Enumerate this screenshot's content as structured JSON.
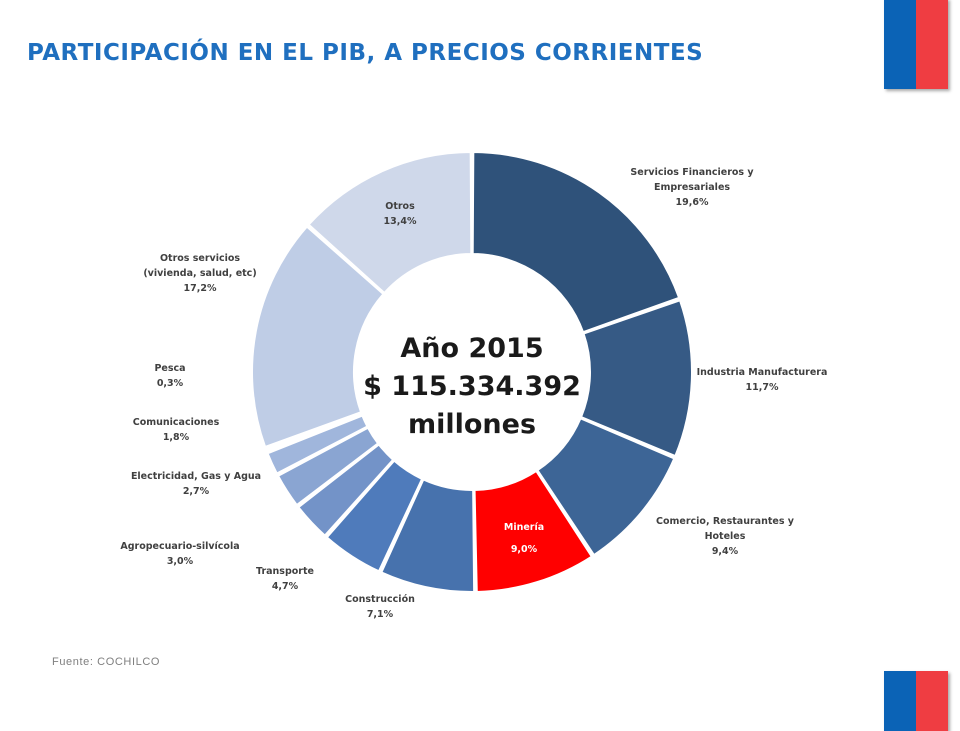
{
  "header": {
    "title": "PARTICIPACIÓN EN EL PIB, A PRECIOS CORRIENTES"
  },
  "footer": {
    "source": "Fuente:  COCHILCO"
  },
  "colors": {
    "flag_blue": "#0b63b6",
    "flag_red": "#ef3d42",
    "title": "#1f6fbf",
    "highlight": "#ff0000"
  },
  "chart_data": {
    "type": "pie",
    "variant": "donut",
    "center_text": [
      "Año 2015",
      "$ 115.334.392",
      "millones"
    ],
    "slices": [
      {
        "label": "Servicios Financieros y Empresariales",
        "value": 19.6,
        "value_text": "19,6%",
        "color": "#2f527a"
      },
      {
        "label": "Industria Manufacturera",
        "value": 11.7,
        "value_text": "11,7%",
        "color": "#365a85"
      },
      {
        "label": "Comercio, Restaurantes y Hoteles",
        "value": 9.4,
        "value_text": "9,4%",
        "color": "#3d6596"
      },
      {
        "label": "Minería",
        "value": 9.0,
        "value_text": "9,0%",
        "color": "#ff0000"
      },
      {
        "label": "Construcción",
        "value": 7.1,
        "value_text": "7,1%",
        "color": "#4772ad"
      },
      {
        "label": "Transporte",
        "value": 4.7,
        "value_text": "4,7%",
        "color": "#4f7bbb"
      },
      {
        "label": "Agropecuario-silvícola",
        "value": 3.0,
        "value_text": "3,0%",
        "color": "#7393c8"
      },
      {
        "label": "Electricidad, Gas y Agua",
        "value": 2.7,
        "value_text": "2,7%",
        "color": "#8aa5d2"
      },
      {
        "label": "Comunicaciones",
        "value": 1.8,
        "value_text": "1,8%",
        "color": "#a0b6dc"
      },
      {
        "label": "Pesca",
        "value": 0.3,
        "value_text": "0,3%",
        "color": "#b3c4e3"
      },
      {
        "label": "Otros servicios (vivienda, salud, etc)",
        "value": 17.2,
        "value_text": "17,2%",
        "color": "#bfcde6"
      },
      {
        "label": "Otros",
        "value": 13.4,
        "value_text": "13,4%",
        "color": "#cfd8ea"
      }
    ]
  }
}
